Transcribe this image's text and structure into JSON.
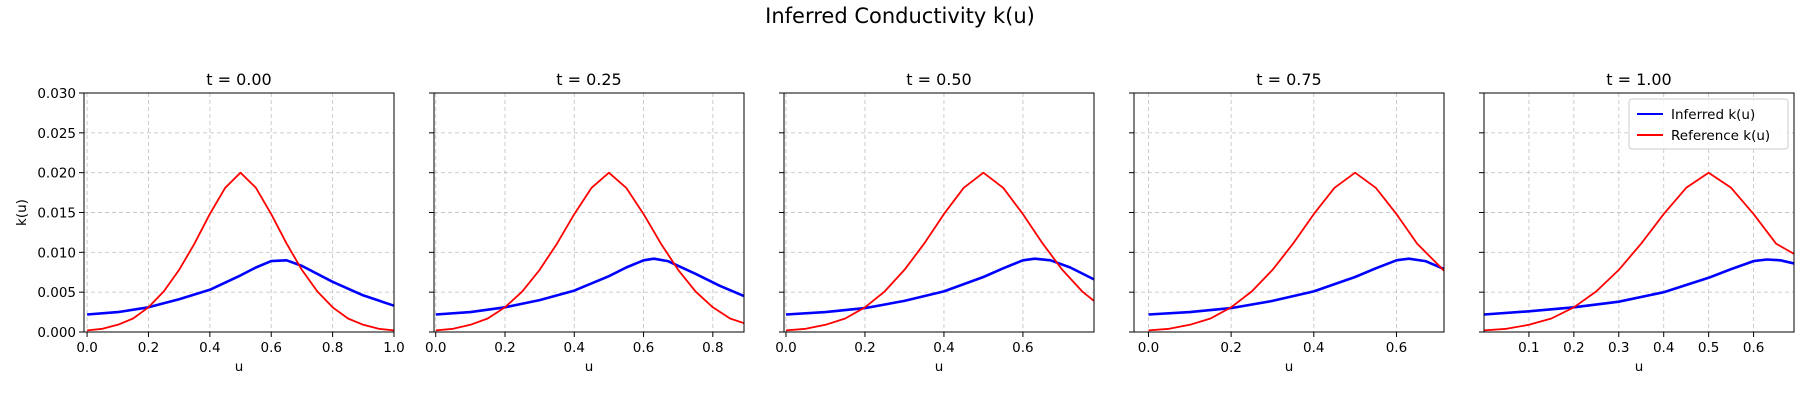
{
  "figure": {
    "title": "Inferred Conductivity k(u)"
  },
  "chart_data": [
    {
      "type": "line",
      "title": "t = 0.00",
      "xlabel": "u",
      "ylabel": "k(u)",
      "xlim": [
        -0.01,
        1.0
      ],
      "ylim": [
        0,
        0.03
      ],
      "xticks": [
        "0.0",
        "0.2",
        "0.4",
        "0.6",
        "0.8",
        "1.0"
      ],
      "yticks": [
        "0.000",
        "0.005",
        "0.010",
        "0.015",
        "0.020",
        "0.025",
        "0.030"
      ],
      "grid": true,
      "legend": false,
      "series": [
        {
          "name": "Inferred k(u)",
          "color": "#0000ff",
          "width": 2.6,
          "x": [
            0.0,
            0.1,
            0.2,
            0.3,
            0.4,
            0.5,
            0.55,
            0.6,
            0.65,
            0.7,
            0.8,
            0.9,
            1.0
          ],
          "y": [
            0.0022,
            0.0025,
            0.0031,
            0.0041,
            0.0053,
            0.0071,
            0.0081,
            0.0089,
            0.009,
            0.0083,
            0.0063,
            0.0046,
            0.0033
          ]
        },
        {
          "name": "Reference k(u)",
          "color": "#ff0000",
          "width": 1.8,
          "x": [
            0.0,
            0.05,
            0.1,
            0.15,
            0.2,
            0.25,
            0.3,
            0.35,
            0.4,
            0.45,
            0.5,
            0.55,
            0.6,
            0.65,
            0.7,
            0.75,
            0.8,
            0.85,
            0.9,
            0.95,
            1.0
          ],
          "y": [
            0.0002,
            0.0004,
            0.0009,
            0.0017,
            0.0031,
            0.0051,
            0.0078,
            0.0111,
            0.0148,
            0.0181,
            0.02,
            0.0181,
            0.0148,
            0.0111,
            0.0078,
            0.0051,
            0.0031,
            0.0017,
            0.0009,
            0.0004,
            0.0002
          ]
        }
      ]
    },
    {
      "type": "line",
      "title": "t = 0.25",
      "xlabel": "u",
      "ylabel": "",
      "xlim": [
        -0.005,
        0.89
      ],
      "ylim": [
        0,
        0.03
      ],
      "xticks": [
        "0.0",
        "0.2",
        "0.4",
        "0.6",
        "0.8"
      ],
      "yticks": [],
      "grid": true,
      "legend": false,
      "series": [
        {
          "name": "Inferred k(u)",
          "color": "#0000ff",
          "width": 2.6,
          "x": [
            0.0,
            0.1,
            0.2,
            0.3,
            0.4,
            0.5,
            0.55,
            0.6,
            0.63,
            0.67,
            0.75,
            0.82,
            0.89
          ],
          "y": [
            0.0022,
            0.0025,
            0.0031,
            0.004,
            0.0052,
            0.007,
            0.0081,
            0.009,
            0.0092,
            0.0089,
            0.0073,
            0.0058,
            0.0045
          ]
        },
        {
          "name": "Reference k(u)",
          "color": "#ff0000",
          "width": 1.8,
          "x": [
            0.0,
            0.05,
            0.1,
            0.15,
            0.2,
            0.25,
            0.3,
            0.35,
            0.4,
            0.45,
            0.5,
            0.55,
            0.6,
            0.65,
            0.7,
            0.75,
            0.8,
            0.85,
            0.89
          ],
          "y": [
            0.0002,
            0.0004,
            0.0009,
            0.0017,
            0.0031,
            0.0051,
            0.0078,
            0.0111,
            0.0148,
            0.0181,
            0.02,
            0.0181,
            0.0148,
            0.0111,
            0.0078,
            0.0051,
            0.0031,
            0.0017,
            0.0011
          ]
        }
      ]
    },
    {
      "type": "line",
      "title": "t = 0.50",
      "xlabel": "u",
      "ylabel": "",
      "xlim": [
        -0.005,
        0.78
      ],
      "ylim": [
        0,
        0.03
      ],
      "xticks": [
        "0.0",
        "0.2",
        "0.4",
        "0.6"
      ],
      "yticks": [],
      "grid": true,
      "legend": false,
      "series": [
        {
          "name": "Inferred k(u)",
          "color": "#0000ff",
          "width": 2.6,
          "x": [
            0.0,
            0.1,
            0.2,
            0.3,
            0.4,
            0.5,
            0.55,
            0.6,
            0.63,
            0.67,
            0.72,
            0.78
          ],
          "y": [
            0.0022,
            0.0025,
            0.003,
            0.0039,
            0.0051,
            0.0069,
            0.008,
            0.009,
            0.0092,
            0.009,
            0.0081,
            0.0066
          ]
        },
        {
          "name": "Reference k(u)",
          "color": "#ff0000",
          "width": 1.8,
          "x": [
            0.0,
            0.05,
            0.1,
            0.15,
            0.2,
            0.25,
            0.3,
            0.35,
            0.4,
            0.45,
            0.5,
            0.55,
            0.6,
            0.65,
            0.7,
            0.75,
            0.78
          ],
          "y": [
            0.0002,
            0.0004,
            0.0009,
            0.0017,
            0.0031,
            0.0051,
            0.0078,
            0.0111,
            0.0148,
            0.0181,
            0.02,
            0.0181,
            0.0148,
            0.0111,
            0.0078,
            0.0051,
            0.0039
          ]
        }
      ]
    },
    {
      "type": "line",
      "title": "t = 0.75",
      "xlabel": "u",
      "ylabel": "",
      "xlim": [
        -0.035,
        0.715
      ],
      "ylim": [
        0,
        0.03
      ],
      "xticks": [
        "0.0",
        "0.2",
        "0.4",
        "0.6"
      ],
      "yticks": [],
      "grid": true,
      "legend": false,
      "series": [
        {
          "name": "Inferred k(u)",
          "color": "#0000ff",
          "width": 2.6,
          "x": [
            0.0,
            0.1,
            0.2,
            0.3,
            0.4,
            0.5,
            0.55,
            0.6,
            0.63,
            0.67,
            0.715
          ],
          "y": [
            0.0022,
            0.0025,
            0.003,
            0.0039,
            0.0051,
            0.0069,
            0.008,
            0.009,
            0.0092,
            0.0089,
            0.0079
          ]
        },
        {
          "name": "Reference k(u)",
          "color": "#ff0000",
          "width": 1.8,
          "x": [
            0.0,
            0.05,
            0.1,
            0.15,
            0.2,
            0.25,
            0.3,
            0.35,
            0.4,
            0.45,
            0.5,
            0.55,
            0.6,
            0.65,
            0.715
          ],
          "y": [
            0.0002,
            0.0004,
            0.0009,
            0.0017,
            0.0031,
            0.0051,
            0.0078,
            0.0111,
            0.0148,
            0.0181,
            0.02,
            0.0181,
            0.0148,
            0.0111,
            0.0077
          ]
        }
      ]
    },
    {
      "type": "line",
      "title": "t = 1.00",
      "xlabel": "u",
      "ylabel": "",
      "xlim": [
        0.0,
        0.69
      ],
      "ylim": [
        0,
        0.03
      ],
      "xticks": [
        "0.1",
        "0.2",
        "0.3",
        "0.4",
        "0.5",
        "0.6"
      ],
      "yticks": [],
      "grid": true,
      "legend": true,
      "legend_loc": "upper right",
      "series": [
        {
          "name": "Inferred k(u)",
          "color": "#0000ff",
          "width": 2.6,
          "x": [
            0.0,
            0.1,
            0.2,
            0.3,
            0.4,
            0.5,
            0.55,
            0.6,
            0.63,
            0.66,
            0.69
          ],
          "y": [
            0.0022,
            0.0026,
            0.0031,
            0.0038,
            0.005,
            0.0068,
            0.0079,
            0.0089,
            0.0091,
            0.009,
            0.0086
          ]
        },
        {
          "name": "Reference k(u)",
          "color": "#ff0000",
          "width": 1.8,
          "x": [
            0.0,
            0.05,
            0.1,
            0.15,
            0.2,
            0.25,
            0.3,
            0.35,
            0.4,
            0.45,
            0.5,
            0.55,
            0.6,
            0.65,
            0.69
          ],
          "y": [
            0.0002,
            0.0004,
            0.0009,
            0.0017,
            0.0031,
            0.0051,
            0.0078,
            0.0111,
            0.0148,
            0.0181,
            0.02,
            0.0181,
            0.0148,
            0.0111,
            0.0098
          ]
        }
      ]
    }
  ]
}
